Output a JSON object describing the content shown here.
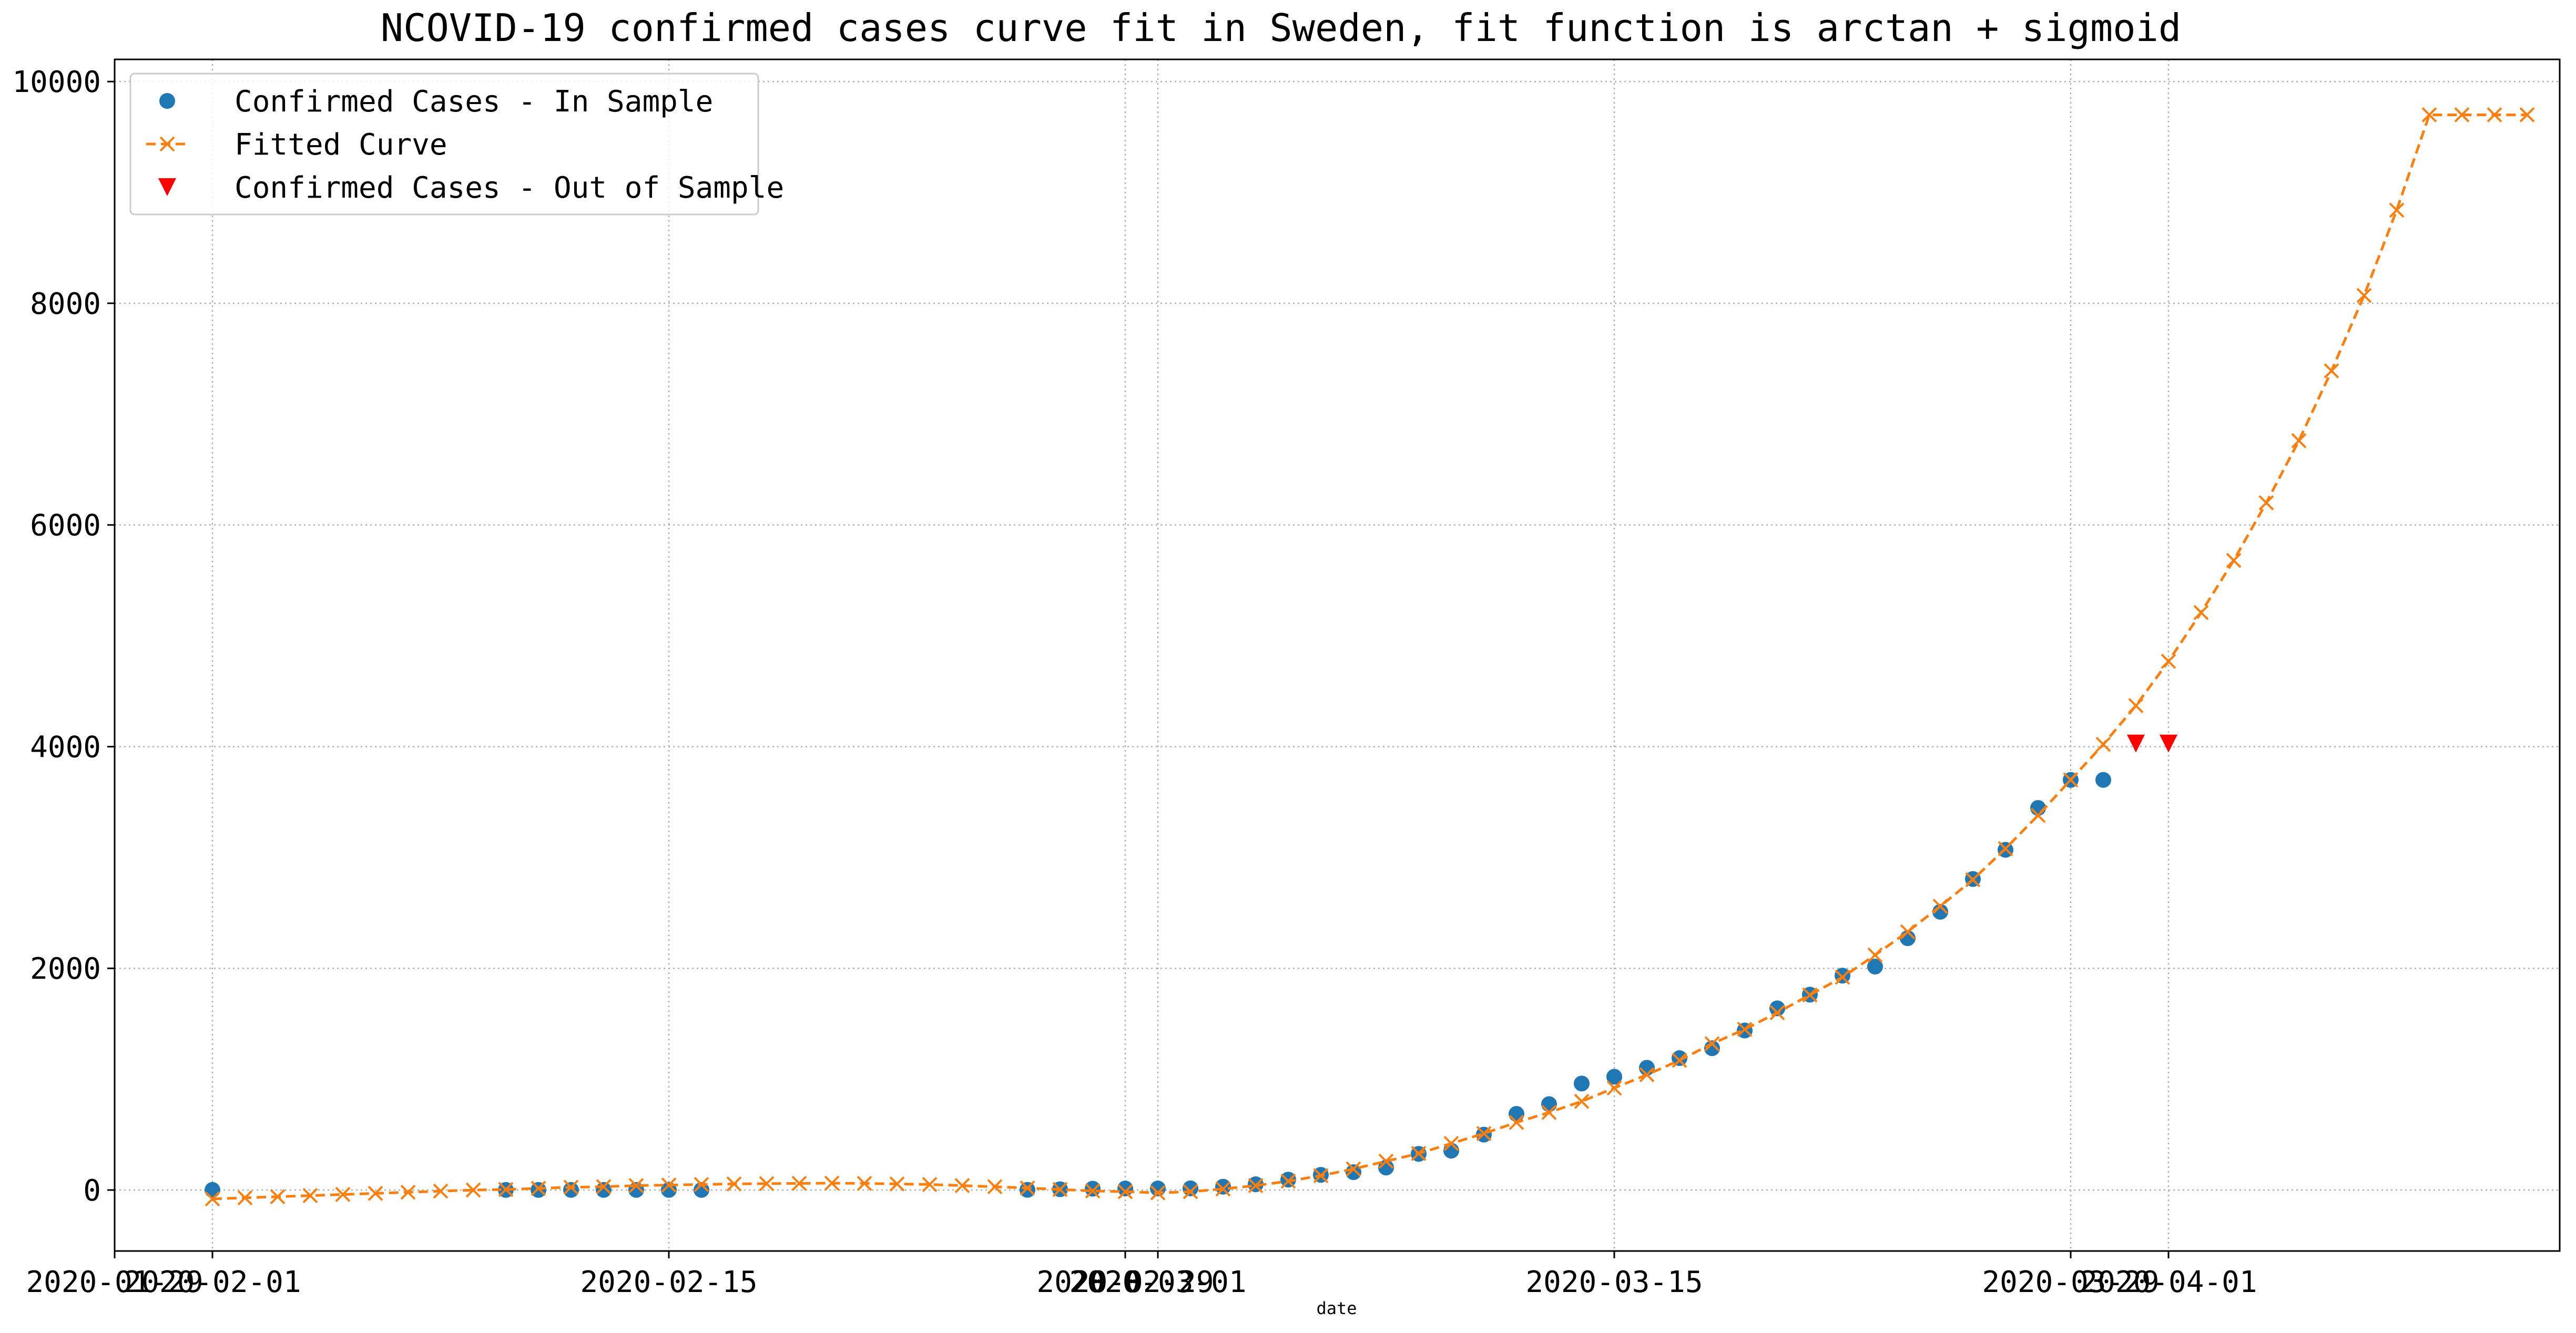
{
  "chart_data": {
    "type": "line",
    "title": "NCOVID-19 confirmed cases curve fit in Sweden, fit function is arctan + sigmoid",
    "xlabel": "date",
    "ylabel": "",
    "x_axis_type": "date",
    "xlim": [
      "2020-01-29",
      "2020-04-13"
    ],
    "ylim": [
      -550,
      10200
    ],
    "x_tick_labels": [
      "2020-01-29",
      "2020-02-01",
      "2020-02-15",
      "2020-02-29",
      "2020-03-01",
      "2020-03-15",
      "2020-03-29",
      "2020-04-01"
    ],
    "y_ticks": [
      0,
      2000,
      4000,
      6000,
      8000,
      10000
    ],
    "grid": true,
    "legend_position": "top-left",
    "colors": {
      "in_sample": "#1f77b4",
      "fitted": "#ff7f0e",
      "out_sample": "#ff0000",
      "grid": "#b0b0b0"
    },
    "series": [
      {
        "name": "Confirmed Cases - In Sample",
        "marker": "circle",
        "line": "none",
        "x": [
          "2020-02-01",
          "2020-02-10",
          "2020-02-11",
          "2020-02-12",
          "2020-02-13",
          "2020-02-14",
          "2020-02-15",
          "2020-02-16",
          "2020-02-26",
          "2020-02-27",
          "2020-02-28",
          "2020-02-29",
          "2020-03-01",
          "2020-03-02",
          "2020-03-03",
          "2020-03-04",
          "2020-03-05",
          "2020-03-06",
          "2020-03-07",
          "2020-03-08",
          "2020-03-09",
          "2020-03-10",
          "2020-03-11",
          "2020-03-12",
          "2020-03-13",
          "2020-03-14",
          "2020-03-15",
          "2020-03-16",
          "2020-03-17",
          "2020-03-18",
          "2020-03-19",
          "2020-03-20",
          "2020-03-21",
          "2020-03-22",
          "2020-03-23",
          "2020-03-24",
          "2020-03-25",
          "2020-03-26",
          "2020-03-27",
          "2020-03-28",
          "2020-03-29",
          "2020-03-30"
        ],
        "y": [
          1,
          1,
          1,
          1,
          1,
          1,
          1,
          1,
          2,
          7,
          12,
          14,
          14,
          15,
          30,
          52,
          94,
          137,
          161,
          203,
          326,
          355,
          500,
          687,
          775,
          961,
          1022,
          1103,
          1190,
          1279,
          1439,
          1639,
          1763,
          1934,
          2016,
          2272,
          2510,
          2806,
          3069,
          3447,
          3700,
          3700
        ]
      },
      {
        "name": "Fitted Curve",
        "marker": "x",
        "line": "dashed",
        "x": [
          "2020-02-01",
          "2020-02-02",
          "2020-02-03",
          "2020-02-04",
          "2020-02-05",
          "2020-02-06",
          "2020-02-07",
          "2020-02-08",
          "2020-02-09",
          "2020-02-10",
          "2020-02-11",
          "2020-02-12",
          "2020-02-13",
          "2020-02-14",
          "2020-02-15",
          "2020-02-16",
          "2020-02-17",
          "2020-02-18",
          "2020-02-19",
          "2020-02-20",
          "2020-02-21",
          "2020-02-22",
          "2020-02-23",
          "2020-02-24",
          "2020-02-25",
          "2020-02-26",
          "2020-02-27",
          "2020-02-28",
          "2020-02-29",
          "2020-03-01",
          "2020-03-02",
          "2020-03-03",
          "2020-03-04",
          "2020-03-05",
          "2020-03-06",
          "2020-03-07",
          "2020-03-08",
          "2020-03-09",
          "2020-03-10",
          "2020-03-11",
          "2020-03-12",
          "2020-03-13",
          "2020-03-14",
          "2020-03-15",
          "2020-03-16",
          "2020-03-17",
          "2020-03-18",
          "2020-03-19",
          "2020-03-20",
          "2020-03-21",
          "2020-03-22",
          "2020-03-23",
          "2020-03-24",
          "2020-03-25",
          "2020-03-26",
          "2020-03-27",
          "2020-03-28",
          "2020-03-29",
          "2020-03-30",
          "2020-03-31",
          "2020-04-01",
          "2020-04-02",
          "2020-04-03",
          "2020-04-04",
          "2020-04-05",
          "2020-04-06",
          "2020-04-07",
          "2020-04-08",
          "2020-04-09",
          "2020-04-10",
          "2020-04-11",
          "2020-04-12"
        ],
        "y": [
          -80,
          -70,
          -60,
          -50,
          -40,
          -30,
          -20,
          -10,
          0,
          5,
          15,
          25,
          30,
          40,
          45,
          50,
          55,
          58,
          60,
          62,
          60,
          55,
          50,
          40,
          30,
          18,
          5,
          -8,
          -15,
          -25,
          -15,
          10,
          40,
          80,
          130,
          190,
          260,
          330,
          420,
          510,
          610,
          700,
          800,
          920,
          1040,
          1170,
          1320,
          1450,
          1600,
          1760,
          1920,
          2120,
          2330,
          2560,
          2800,
          3080,
          3380,
          3700,
          4020,
          4370,
          4770,
          5210,
          5680,
          6200,
          6760,
          7390,
          8070,
          8840,
          9700,
          9700,
          9700,
          9700
        ],
        "y_note": ""
      },
      {
        "name": "Confirmed Cases - Out of Sample",
        "marker": "triangle-down",
        "line": "none",
        "x": [
          "2020-03-31",
          "2020-04-01"
        ],
        "y": [
          4028,
          4028
        ]
      }
    ]
  }
}
